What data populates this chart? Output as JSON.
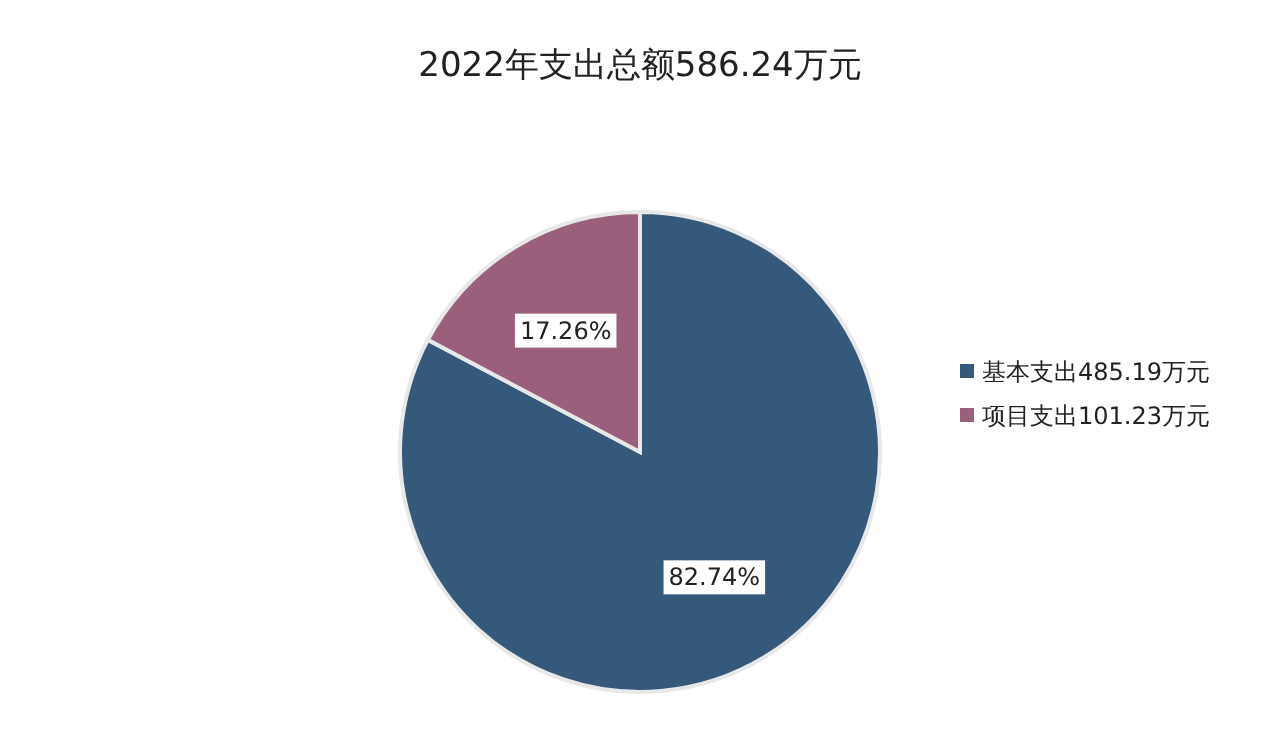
{
  "chart_data": {
    "type": "pie",
    "title": "2022年支出总额586.24万元",
    "categories": [
      "基本支出485.19万元",
      "项目支出101.23万元"
    ],
    "values": [
      82.74,
      17.26
    ],
    "colors": [
      "#35597b",
      "#9a5f7b"
    ],
    "value_labels": [
      "82.74%",
      "17.26%"
    ],
    "legend": "right"
  }
}
